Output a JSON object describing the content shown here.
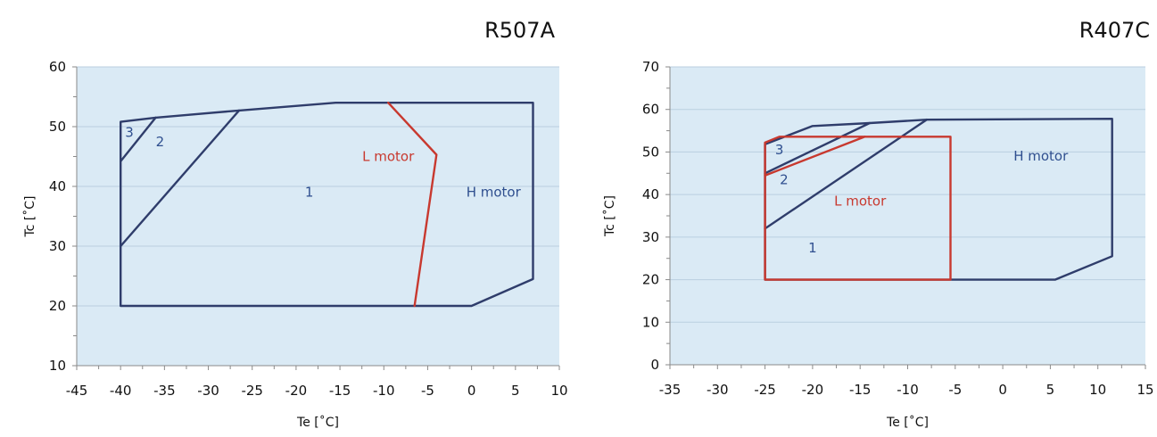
{
  "chart_data": [
    {
      "type": "line",
      "title": "R507A",
      "xlabel": "Te [˚C]",
      "ylabel": "Tc [˚C]",
      "xlim": [
        -45,
        10
      ],
      "ylim": [
        10,
        60
      ],
      "x_ticks": [
        -45,
        -40,
        -35,
        -30,
        -25,
        -20,
        -15,
        -10,
        -5,
        0,
        5,
        10
      ],
      "y_ticks": [
        10,
        20,
        30,
        40,
        50,
        60
      ],
      "grid": true,
      "plot_background": "#daeaf5",
      "series": [
        {
          "name": "H motor",
          "color": "#2f3d6b",
          "x": [
            -40,
            0,
            7,
            7,
            -15.5,
            -26.5,
            -36,
            -40,
            -40
          ],
          "y": [
            20,
            20,
            24.5,
            54,
            54,
            52.7,
            51.5,
            50.8,
            20
          ]
        },
        {
          "color": "#2f3d6b",
          "x": [
            -40,
            -26.5
          ],
          "y": [
            30,
            52.7
          ]
        },
        {
          "color": "#2f3d6b",
          "x": [
            -40,
            -36
          ],
          "y": [
            44.2,
            51.5
          ]
        },
        {
          "name": "L motor",
          "color": "#c8392f",
          "x": [
            -9.5,
            -4,
            -6.5
          ],
          "y": [
            54,
            45.3,
            20
          ]
        }
      ],
      "annotations": [
        {
          "text": "1",
          "x": -18.5,
          "y": 39,
          "color": "#2f4f8f"
        },
        {
          "text": "2",
          "x": -35.5,
          "y": 47.5,
          "color": "#2f4f8f"
        },
        {
          "text": "3",
          "x": -39,
          "y": 49,
          "color": "#2f4f8f"
        },
        {
          "text": "L  motor",
          "x": -9.5,
          "y": 45,
          "color": "#c8392f"
        },
        {
          "text": "H  motor",
          "x": 2.5,
          "y": 39,
          "color": "#2f4f8f"
        }
      ]
    },
    {
      "type": "line",
      "title": "R407C",
      "xlabel": "Te [˚C]",
      "ylabel": "Tc [˚C]",
      "xlim": [
        -35,
        15
      ],
      "ylim": [
        0,
        70
      ],
      "x_ticks": [
        -35,
        -30,
        -25,
        -20,
        -15,
        -10,
        -5,
        0,
        5,
        10,
        15
      ],
      "y_ticks": [
        0,
        10,
        20,
        30,
        40,
        50,
        60,
        70
      ],
      "grid": true,
      "plot_background": "#daeaf5",
      "series": [
        {
          "name": "H motor",
          "color": "#2f3d6b",
          "x": [
            -25,
            5.5,
            11.5,
            11.5,
            -8,
            -14,
            -20,
            -25,
            -25
          ],
          "y": [
            20,
            20,
            25.5,
            57.8,
            57.6,
            56.8,
            56.1,
            51.8,
            20
          ]
        },
        {
          "color": "#2f3d6b",
          "x": [
            -25,
            -8
          ],
          "y": [
            32,
            57.6
          ]
        },
        {
          "color": "#2f3d6b",
          "x": [
            -25,
            -14
          ],
          "y": [
            45,
            56.8
          ]
        },
        {
          "name": "L motor",
          "color": "#c8392f",
          "x": [
            -25,
            -5.5,
            -5.5,
            -23.5,
            -25,
            -25
          ],
          "y": [
            20,
            20,
            53.6,
            53.6,
            52.2,
            20
          ]
        },
        {
          "color": "#c8392f",
          "x": [
            -25,
            -14.5
          ],
          "y": [
            44.5,
            53.6
          ]
        }
      ],
      "annotations": [
        {
          "text": "1",
          "x": -20,
          "y": 27.5,
          "color": "#2f4f8f"
        },
        {
          "text": "2",
          "x": -23,
          "y": 43.5,
          "color": "#2f4f8f"
        },
        {
          "text": "3",
          "x": -23.5,
          "y": 50.5,
          "color": "#2f4f8f"
        },
        {
          "text": "L  motor",
          "x": -15,
          "y": 38.5,
          "color": "#c8392f"
        },
        {
          "text": "H  motor",
          "x": 4,
          "y": 49,
          "color": "#2f4f8f"
        }
      ]
    }
  ]
}
